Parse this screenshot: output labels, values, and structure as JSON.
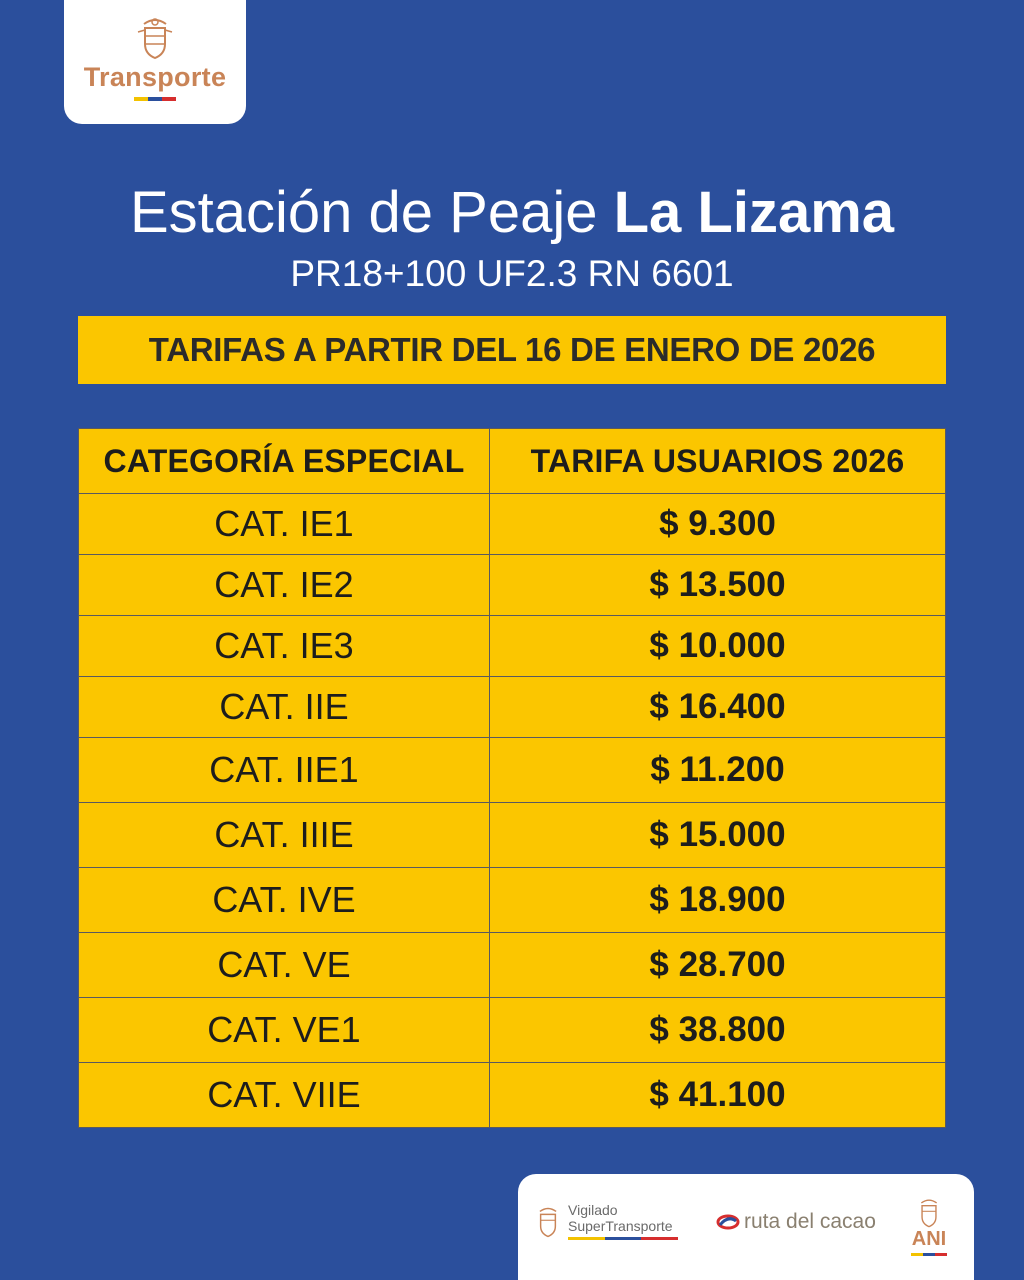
{
  "logo": {
    "brand": "Transporte",
    "icon": "coat-of-arms-icon"
  },
  "header": {
    "title_light": "Estación de Peaje",
    "title_bold": "La Lizama",
    "subtitle": "PR18+100 UF2.3 RN 6601"
  },
  "banner": "TARIFAS A PARTIR DEL 16 DE ENERO DE 2026",
  "table": {
    "headers": [
      "CATEGORÍA ESPECIAL",
      "TARIFA USUARIOS 2026"
    ],
    "rows": [
      [
        "CAT. IE1",
        "$ 9.300"
      ],
      [
        "CAT. IE2",
        "$ 13.500"
      ],
      [
        "CAT. IE3",
        "$ 10.000"
      ],
      [
        "CAT. IIE",
        "$ 16.400"
      ],
      [
        "CAT. IIE1",
        "$ 11.200"
      ],
      [
        "CAT. IIIE",
        "$ 15.000"
      ],
      [
        "CAT. IVE",
        "$ 18.900"
      ],
      [
        "CAT. VE",
        "$ 28.700"
      ],
      [
        "CAT. VE1",
        "$ 38.800"
      ],
      [
        "CAT. VIIE",
        "$ 41.100"
      ]
    ]
  },
  "footer": {
    "vigilado_line1": "Vigilado",
    "vigilado_line2": "SuperTransporte",
    "ruta": "ruta del cacao",
    "ani": "ANI"
  },
  "colors": {
    "background": "#2b4f9c",
    "accent_yellow": "#fbc600",
    "brand_copper": "#c98457",
    "flag_yellow": "#f3c200",
    "flag_blue": "#2b4f9c",
    "flag_red": "#d62e2e"
  }
}
